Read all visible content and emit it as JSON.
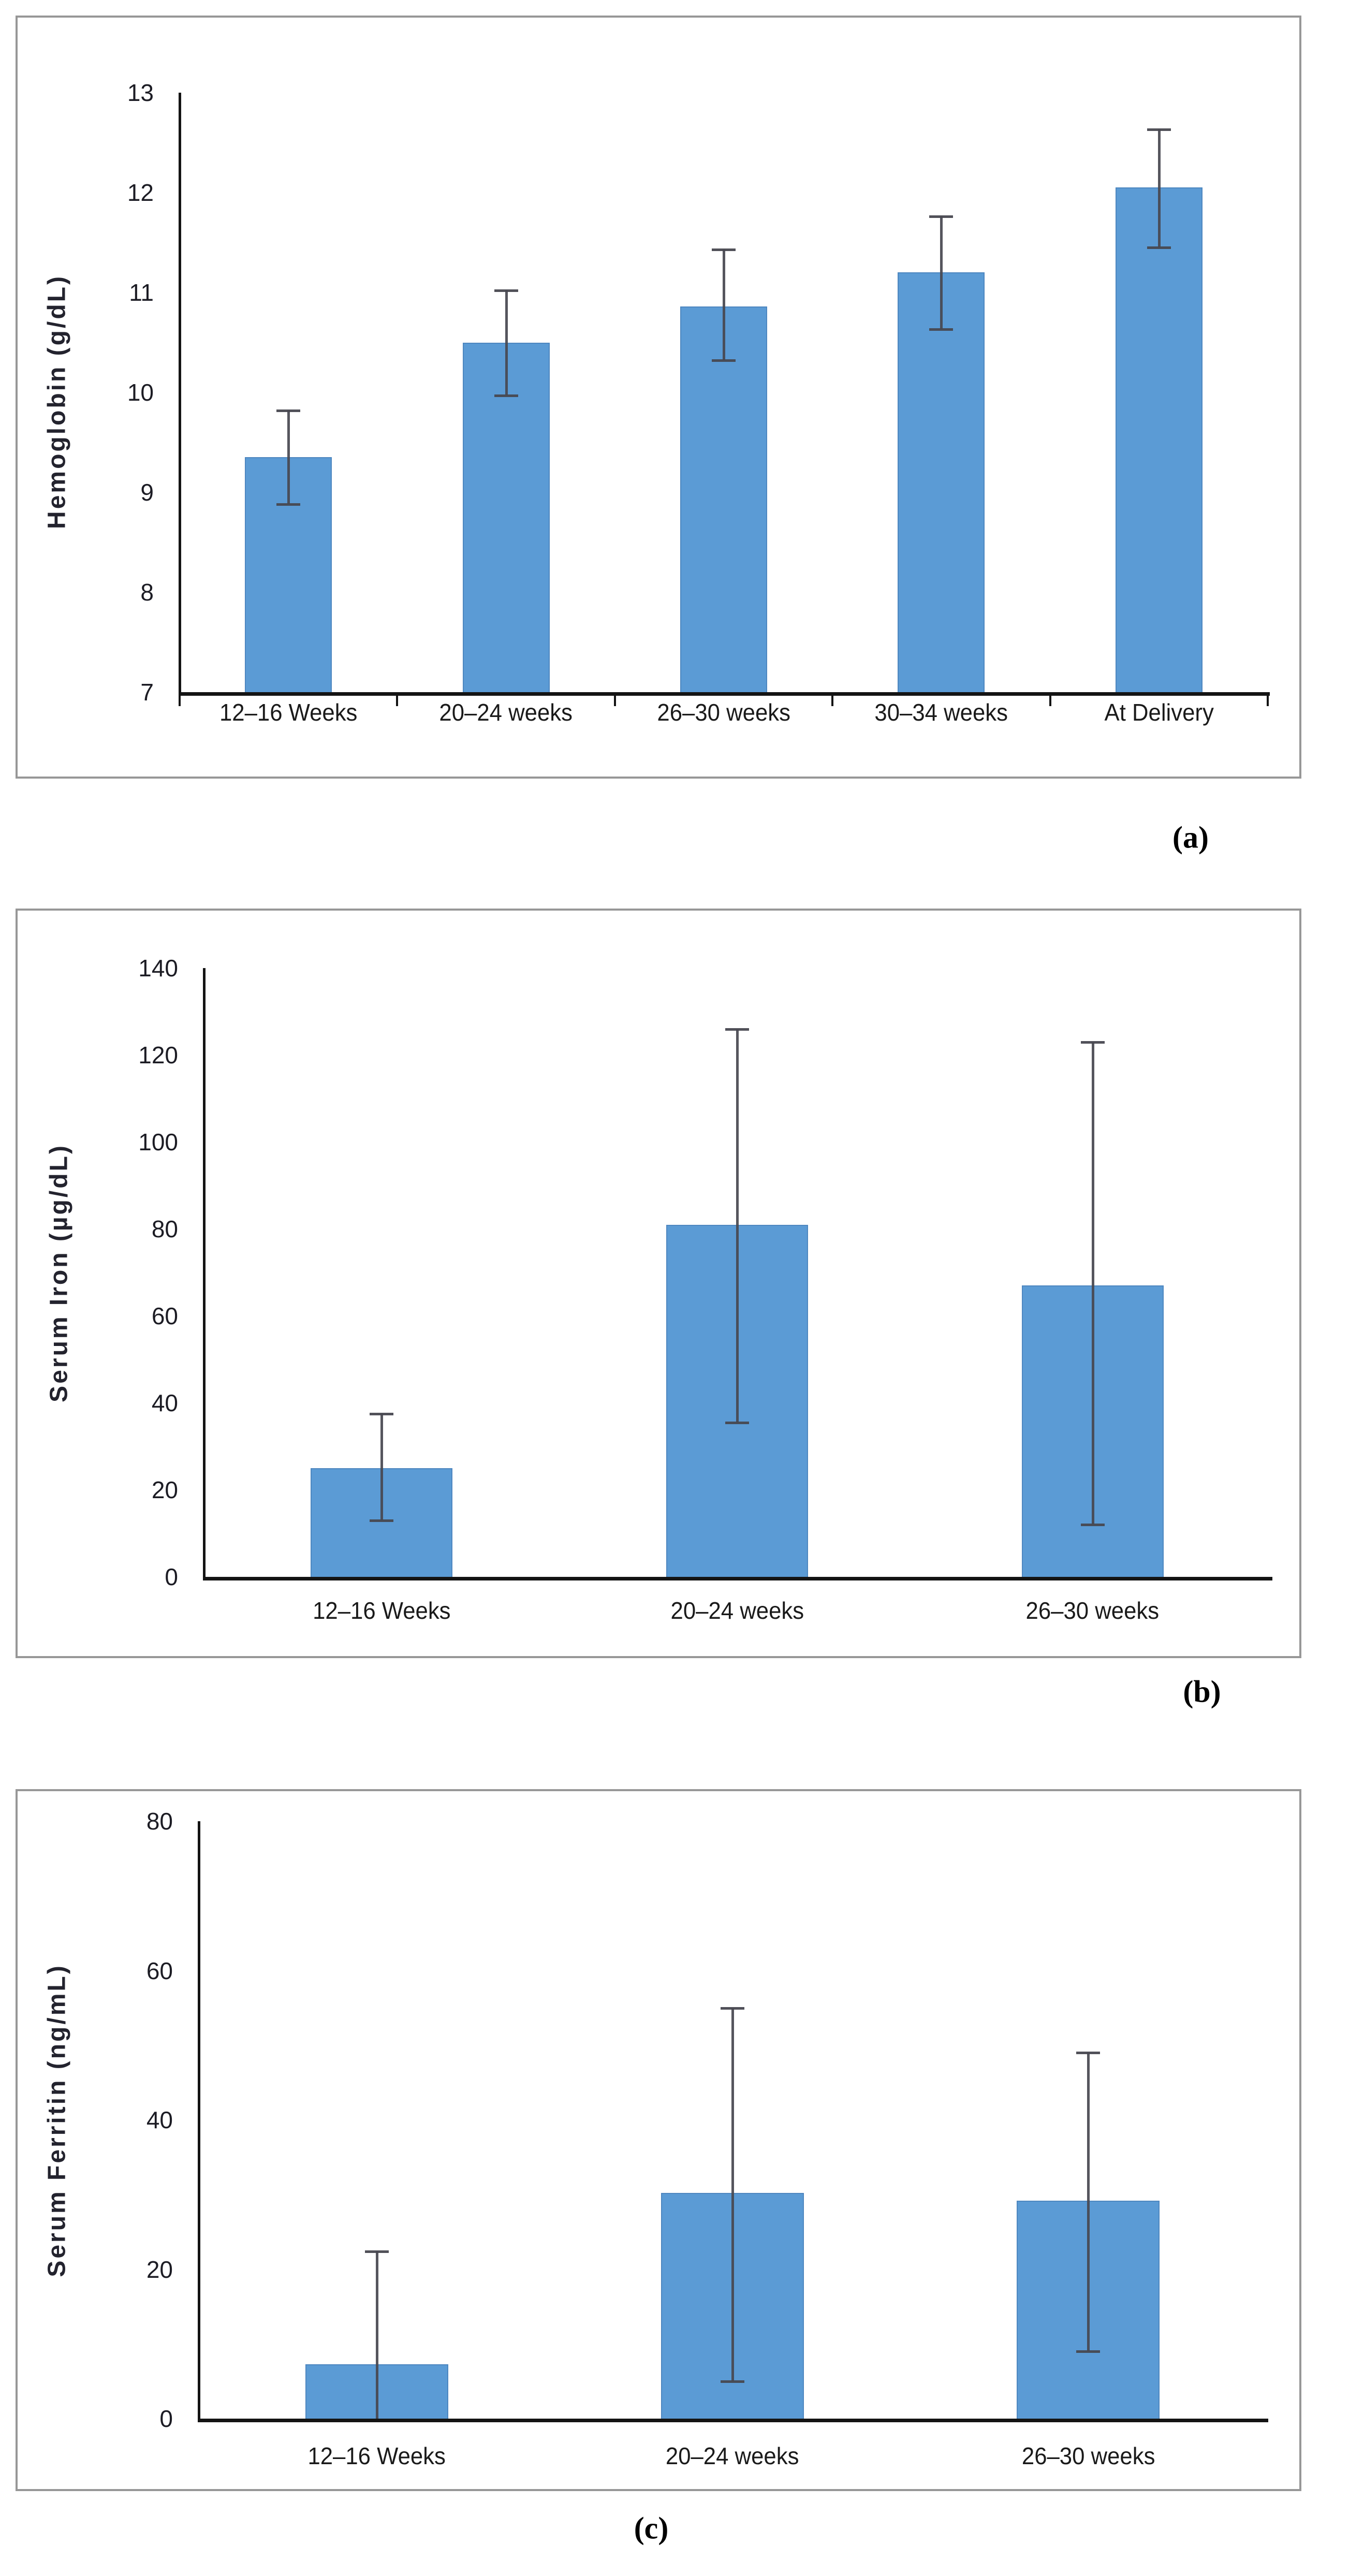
{
  "figure": {
    "panel_labels": [
      "(a)",
      "(b)",
      "(c)"
    ],
    "background": "#ffffff"
  },
  "colors": {
    "bar_fill": "#5b9bd5",
    "bar_edge": "#4e87c0",
    "error_bar": "#484850",
    "axis": "#141414",
    "panel_border": "#979797",
    "text": "#1c1c24"
  },
  "chart_data": [
    {
      "type": "bar",
      "panel_label": "(a)",
      "title": "",
      "xlabel": "",
      "ylabel": "Hemoglobin (g/dL)",
      "categories": [
        "12–16 Weeks",
        "20–24 weeks",
        "26–30 weeks",
        "30–34 weeks",
        "At Delivery"
      ],
      "values": [
        9.35,
        10.5,
        10.86,
        11.2,
        12.05
      ],
      "error_low": [
        8.88,
        9.97,
        10.32,
        10.63,
        11.45
      ],
      "error_high": [
        9.82,
        11.02,
        11.43,
        11.76,
        12.63
      ],
      "ylim": [
        7,
        13
      ],
      "yticks": [
        7,
        8,
        9,
        10,
        11,
        12,
        13
      ],
      "grid": false,
      "legend": null
    },
    {
      "type": "bar",
      "panel_label": "(b)",
      "title": "",
      "xlabel": "",
      "ylabel": "Serum Iron (µg/dL)",
      "categories": [
        "12–16 Weeks",
        "20–24 weeks",
        "26–30 weeks"
      ],
      "values": [
        25,
        81,
        67
      ],
      "error_low": [
        13,
        35.5,
        12
      ],
      "error_high": [
        37.5,
        126,
        123
      ],
      "ylim": [
        0,
        140
      ],
      "yticks": [
        0,
        20,
        40,
        60,
        80,
        100,
        120,
        140
      ],
      "grid": false,
      "legend": null
    },
    {
      "type": "bar",
      "panel_label": "(c)",
      "title": "",
      "xlabel": "",
      "ylabel": "Serum Ferritin (ng/mL)",
      "categories": [
        "12–16 Weeks",
        "20–24 weeks",
        "26–30 weeks"
      ],
      "values": [
        7.3,
        30.2,
        29.2
      ],
      "error_low": [
        0,
        5,
        9
      ],
      "error_high": [
        22.4,
        55,
        49
      ],
      "ylim": [
        0,
        80
      ],
      "yticks": [
        0,
        20,
        40,
        60,
        80
      ],
      "grid": false,
      "legend": null
    }
  ]
}
